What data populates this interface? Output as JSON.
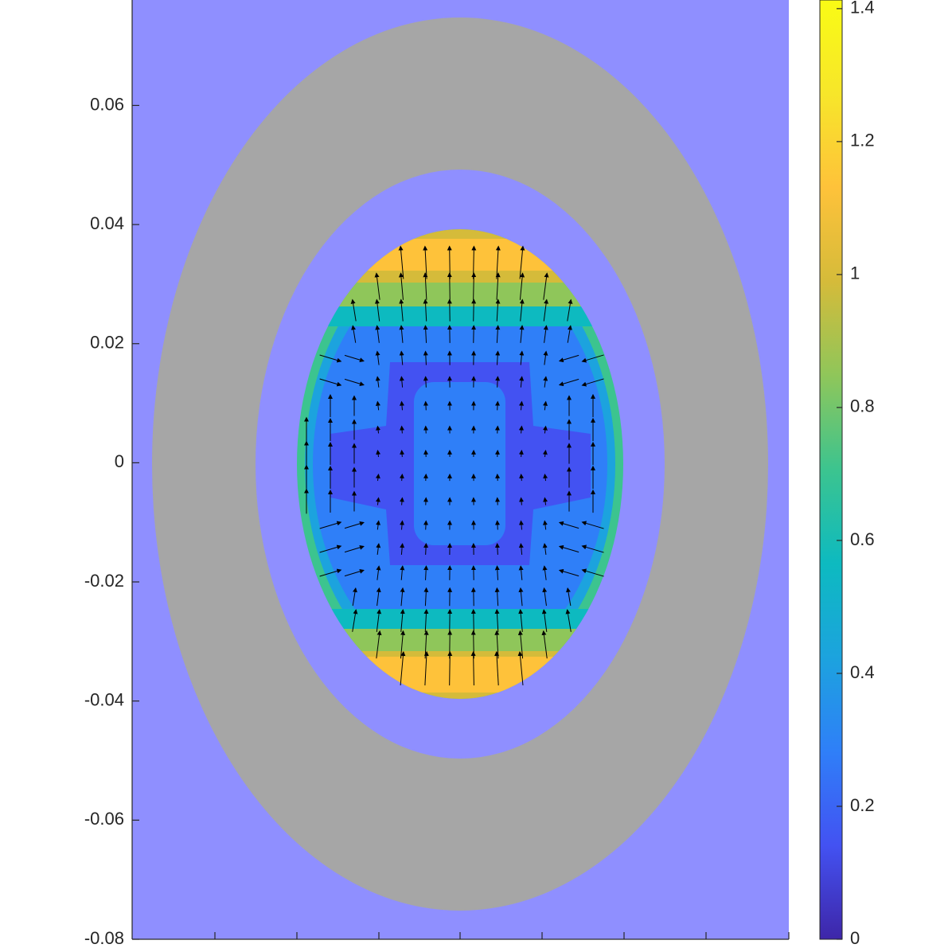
{
  "chart_data": {
    "type": "field",
    "ylim": [
      -0.08,
      0.0777
    ],
    "yticks": [
      -0.08,
      -0.06,
      -0.04,
      -0.02,
      0,
      0.02,
      0.04,
      0.06
    ],
    "clim": [
      0,
      1.413
    ],
    "cticks": [
      0,
      0.2,
      0.4,
      0.6,
      0.8,
      1,
      1.2,
      1.4
    ],
    "colormap": [
      "#3e26a8",
      "#4352f2",
      "#2f7ff8",
      "#1ca3de",
      "#0dbac0",
      "#3cc48f",
      "#8fc65a",
      "#d5bb3a",
      "#fec23a",
      "#f7e62a",
      "#f9fb15"
    ],
    "background": "#8f8fff",
    "ring_color": "#a6a6a6"
  }
}
